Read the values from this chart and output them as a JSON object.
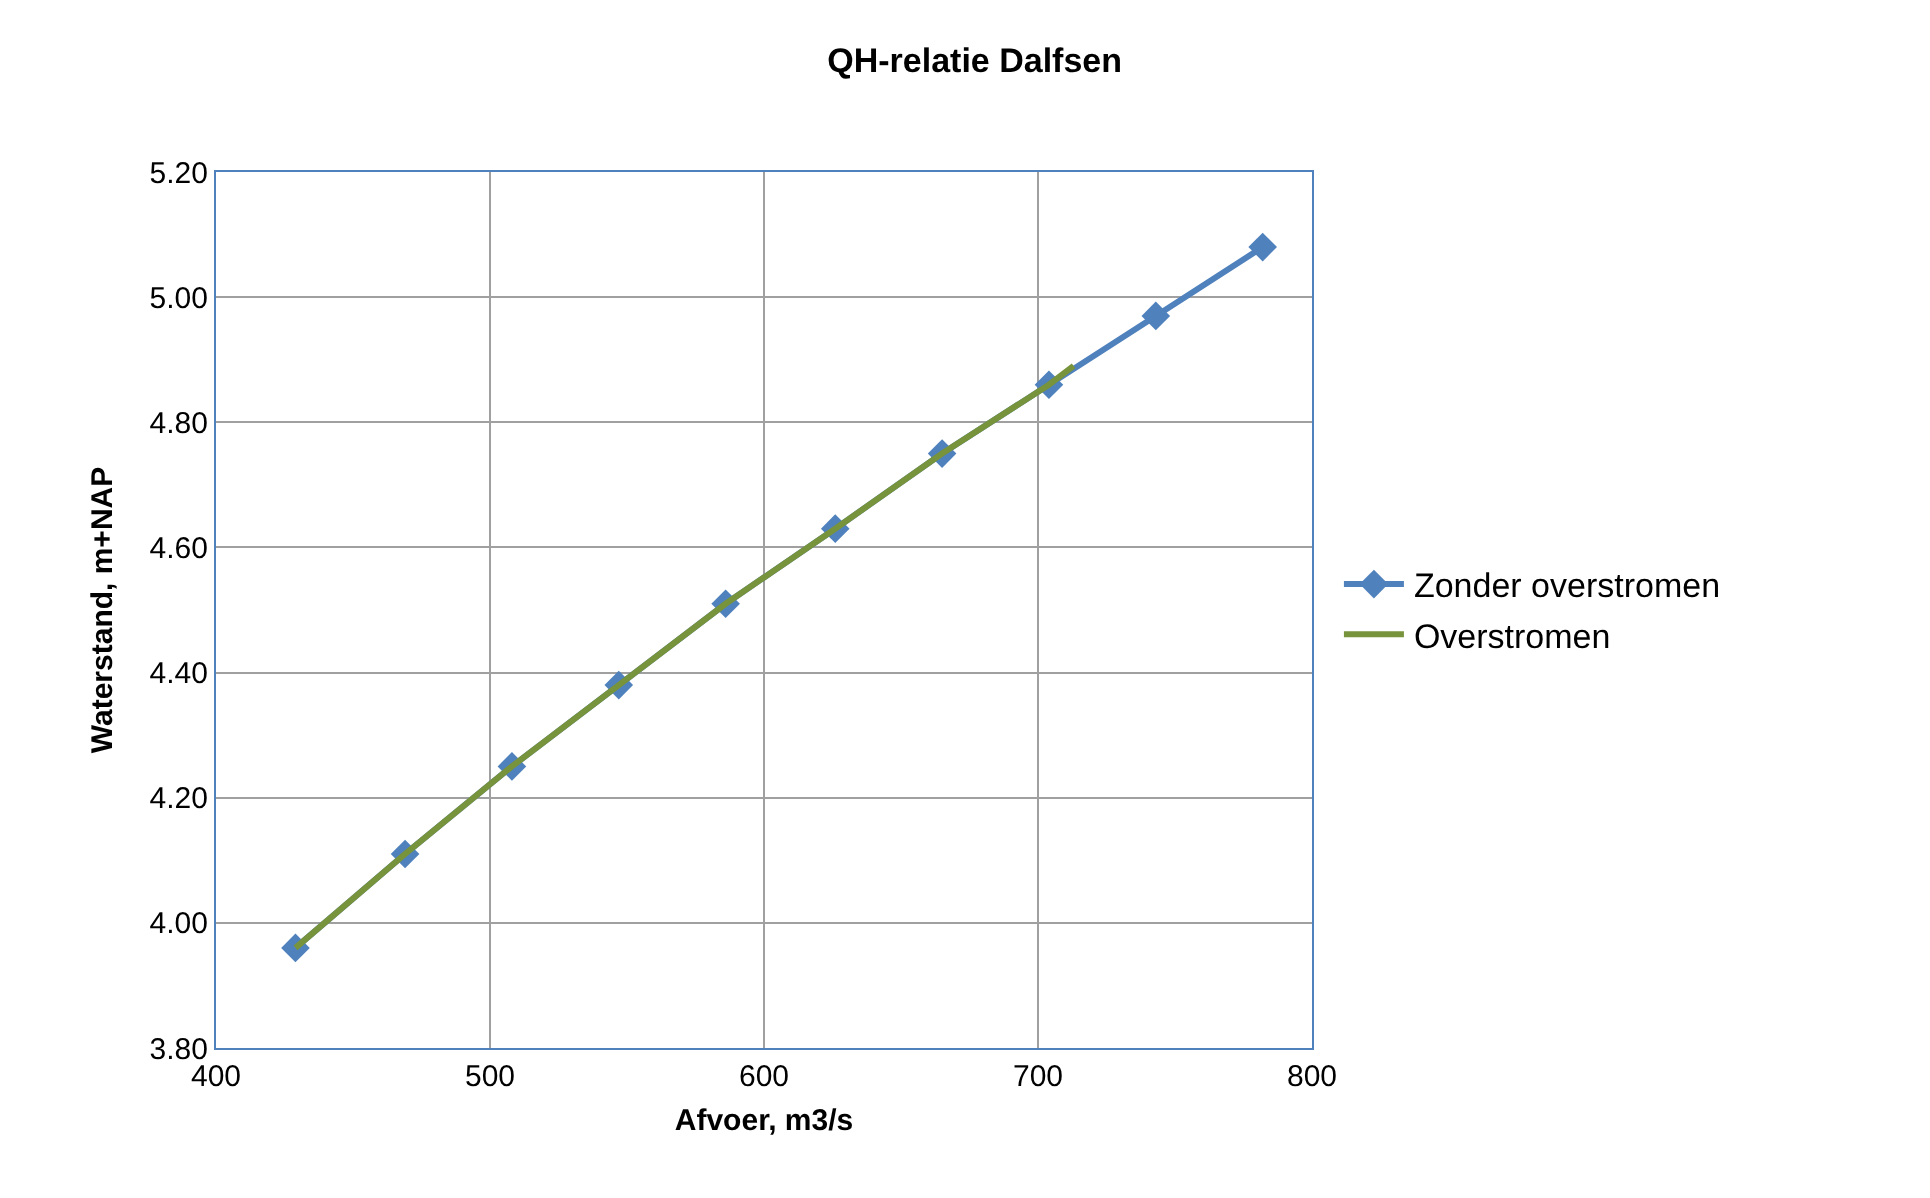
{
  "chart_data": {
    "type": "line",
    "title": "QH-relatie Dalfsen",
    "xlabel": "Afvoer, m3/s",
    "ylabel": "Waterstand, m+NAP",
    "xlim": [
      400,
      800
    ],
    "xticks": [
      400,
      500,
      600,
      700,
      800
    ],
    "ylim": [
      3.8,
      5.2
    ],
    "yticks": [
      {
        "value": 3.8,
        "label": "3.80"
      },
      {
        "value": 4.0,
        "label": "4.00"
      },
      {
        "value": 4.2,
        "label": "4.20"
      },
      {
        "value": 4.4,
        "label": "4.40"
      },
      {
        "value": 4.6,
        "label": "4.60"
      },
      {
        "value": 4.8,
        "label": "4.80"
      },
      {
        "value": 5.0,
        "label": "5.00"
      },
      {
        "value": 5.2,
        "label": "5.20"
      }
    ],
    "grid": true,
    "legend": "right",
    "series": [
      {
        "name": "Zonder overstromen",
        "color": "#4f81bd",
        "marker": "diamond",
        "x": [
          429,
          469,
          508,
          547,
          586,
          626,
          665,
          704,
          743,
          782
        ],
        "values": [
          3.96,
          4.11,
          4.25,
          4.38,
          4.51,
          4.63,
          4.75,
          4.86,
          4.97,
          5.08
        ]
      },
      {
        "name": "Overstromen",
        "color": "#77933c",
        "marker": "none",
        "x": [
          429,
          469,
          508,
          547,
          586,
          626,
          665,
          704,
          713
        ],
        "values": [
          3.96,
          4.11,
          4.25,
          4.38,
          4.51,
          4.63,
          4.75,
          4.86,
          4.89
        ]
      }
    ]
  }
}
